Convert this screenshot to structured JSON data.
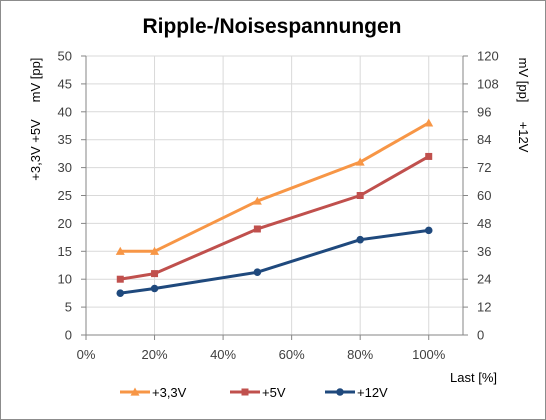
{
  "chart_data": {
    "type": "line",
    "title": "Ripple-/Noisespannungen",
    "xlabel": "Last [%]",
    "x": [
      10,
      20,
      50,
      80,
      100
    ],
    "xlim": [
      0,
      110
    ],
    "x_ticks": [
      0,
      20,
      40,
      60,
      80,
      100
    ],
    "x_tick_labels": [
      "0%",
      "20%",
      "40%",
      "60%",
      "80%",
      "100%"
    ],
    "y_left": {
      "label_series": "+3,3V +5V",
      "label_unit": "mV [pp]",
      "range": [
        0,
        50
      ],
      "ticks": [
        "0",
        "5",
        "10",
        "15",
        "20",
        "25",
        "30",
        "35",
        "40",
        "45",
        "50"
      ]
    },
    "y_right": {
      "label_series": "+12V",
      "label_unit": "mV [pp]",
      "range": [
        0,
        120
      ],
      "ticks": [
        "0",
        "12",
        "24",
        "36",
        "48",
        "60",
        "72",
        "84",
        "96",
        "108",
        "120"
      ]
    },
    "grid": true,
    "legend_position": "bottom",
    "series": [
      {
        "name": "+3,3V",
        "axis": "left",
        "color": "#f79646",
        "marker": "triangle",
        "values": [
          15,
          15,
          24,
          31,
          38
        ]
      },
      {
        "name": "+5V",
        "axis": "left",
        "color": "#c0504d",
        "marker": "square",
        "values": [
          10,
          11,
          19,
          25,
          32
        ]
      },
      {
        "name": "+12V",
        "axis": "right",
        "color": "#1f497d",
        "marker": "circle",
        "values": [
          18,
          20,
          27,
          41,
          45
        ]
      }
    ]
  }
}
